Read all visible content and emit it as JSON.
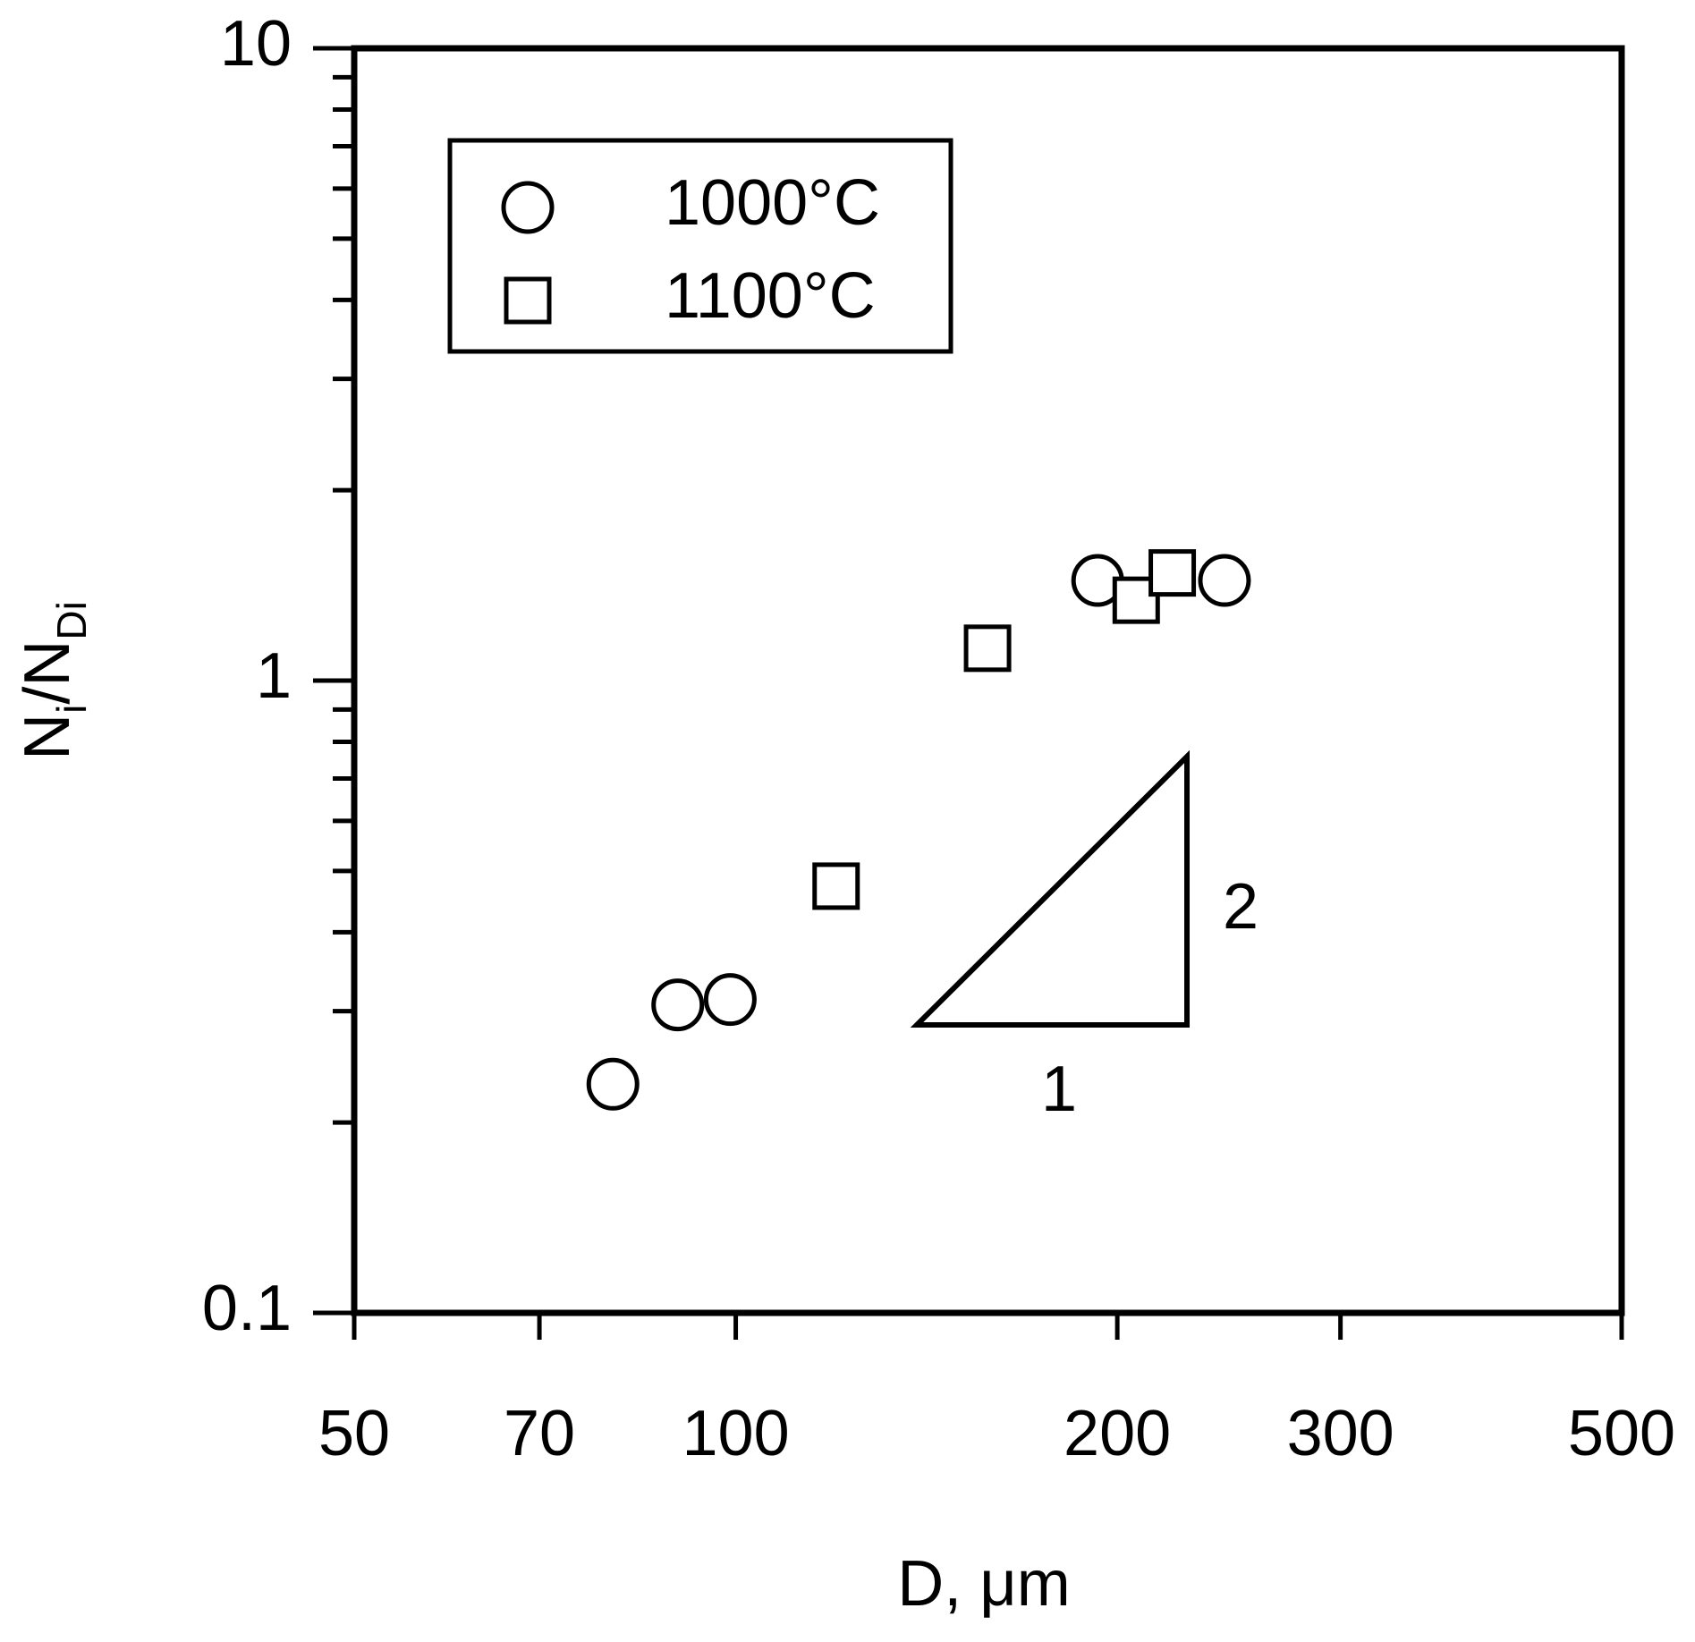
{
  "chart_data": {
    "type": "scatter",
    "xlabel": "D, μm",
    "ylabel": [
      "N",
      "i",
      "/N",
      "Di"
    ],
    "xscale": "log",
    "yscale": "log",
    "xlim": [
      50,
      500
    ],
    "ylim": [
      0.1,
      10
    ],
    "xticks": [
      50,
      70,
      100,
      200,
      300,
      500
    ],
    "yticks": [
      0.1,
      1,
      10
    ],
    "yminorticks": [
      0.2,
      0.3,
      0.4,
      0.5,
      0.6,
      0.7,
      0.8,
      0.9,
      2,
      3,
      4,
      5,
      6,
      7,
      8,
      9
    ],
    "legend": "upper left",
    "series": [
      {
        "name": "1000°C",
        "marker": "circle",
        "color": "#000000",
        "x": [
          80,
          90,
          99,
          193,
          243
        ],
        "y": [
          0.23,
          0.307,
          0.313,
          1.44,
          1.44
        ]
      },
      {
        "name": "1100°C",
        "marker": "square",
        "color": "#000000",
        "x": [
          120,
          158,
          207,
          221
        ],
        "y": [
          0.473,
          1.125,
          1.34,
          1.48
        ]
      }
    ],
    "annotations": [
      "1",
      "2"
    ]
  }
}
